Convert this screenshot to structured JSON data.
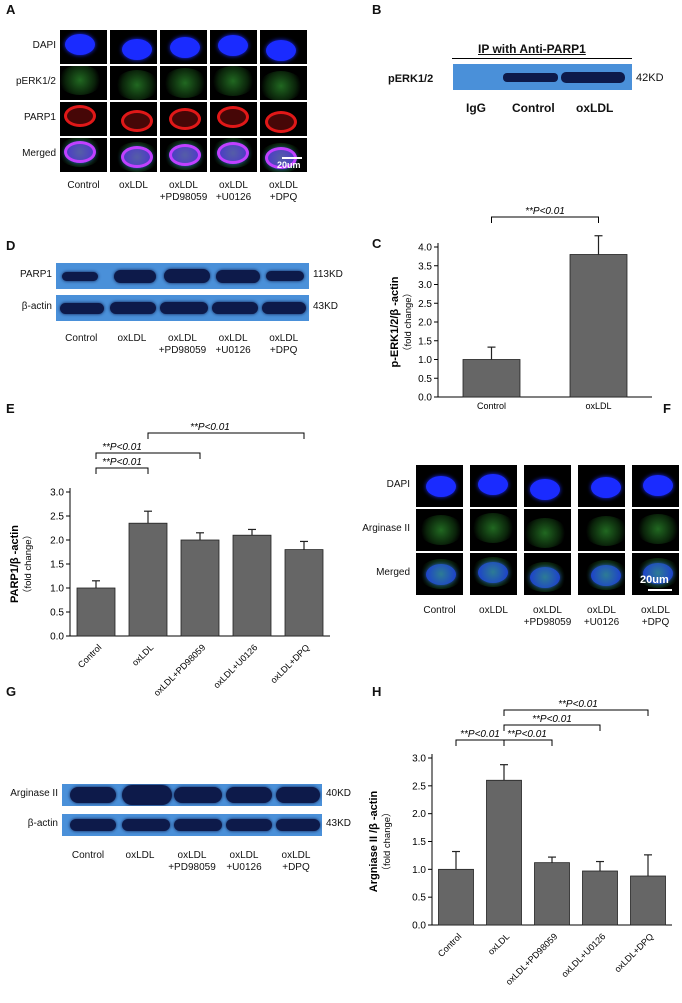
{
  "panels": {
    "A": {
      "letter": "A",
      "rows": [
        "DAPI",
        "pERK1/2",
        "PARP1",
        "Merged"
      ],
      "conditions": [
        "Control",
        "oxLDL",
        "oxLDL\n+PD98059",
        "oxLDL\n+U0126",
        "oxLDL\n+DPQ"
      ],
      "scale_label": "20um"
    },
    "B": {
      "letter": "B",
      "title": "IP with Anti-PARP1",
      "row_label": "pERK1/2",
      "size_label": "42KD",
      "lanes": [
        "IgG",
        "Control",
        "oxLDL"
      ]
    },
    "C": {
      "letter": "C",
      "significance": "**P<0.01"
    },
    "D": {
      "letter": "D",
      "rows": [
        {
          "name": "PARP1",
          "size": "113KD"
        },
        {
          "name": "β-actin",
          "size": "43KD"
        }
      ],
      "conditions": [
        "Control",
        "oxLDL",
        "oxLDL\n+PD98059",
        "oxLDL\n+U0126",
        "oxLDL\n+DPQ"
      ]
    },
    "E": {
      "letter": "E",
      "significance": [
        "**P<0.01",
        "**P<0.01",
        "**P<0.01"
      ]
    },
    "F": {
      "letter": "F",
      "rows": [
        "DAPI",
        "Arginase II",
        "Merged"
      ],
      "conditions": [
        "Control",
        "oxLDL",
        "oxLDL\n+PD98059",
        "oxLDL\n+U0126",
        "oxLDL\n+DPQ"
      ],
      "scale_label": "20um"
    },
    "G": {
      "letter": "G",
      "rows": [
        {
          "name": "Arginase II",
          "size": "40KD"
        },
        {
          "name": "β-actin",
          "size": "43KD"
        }
      ],
      "conditions": [
        "Control",
        "oxLDL",
        "oxLDL\n+PD98059",
        "oxLDL\n+U0126",
        "oxLDL\n+DPQ"
      ]
    },
    "H": {
      "letter": "H",
      "significance": [
        "**P<0.01",
        "**P<0.01",
        "**P<0.01",
        "**P<0.01"
      ]
    }
  },
  "colors": {
    "bar_fill": "#666666",
    "dapi": "#1a2bff",
    "green": "#3fbf3f",
    "red": "#e01818",
    "blot_bg": "#4a90d9",
    "band": "#0d1a4a"
  },
  "chart_data": [
    {
      "panel": "C",
      "type": "bar",
      "categories": [
        "Control",
        "oxLDL"
      ],
      "values": [
        1.0,
        3.8
      ],
      "errors": [
        0.33,
        0.5
      ],
      "ylabel": "p-ERK1/2/β -actin\n（fold change）",
      "ylim": [
        0,
        4.0
      ],
      "yticks": [
        0.0,
        0.5,
        1.0,
        1.5,
        2.0,
        2.5,
        3.0,
        3.5,
        4.0
      ],
      "yticklabels": [
        "0.0",
        "0.5",
        "1.0",
        "1.5",
        "2.0",
        "2.5",
        "3.0",
        "3.5",
        "4.0"
      ]
    },
    {
      "panel": "E",
      "type": "bar",
      "categories": [
        "Control",
        "oxLDL",
        "oxLDL+PD98059",
        "oxLDL+U0126",
        "oxLDL+DPQ"
      ],
      "values": [
        1.0,
        2.35,
        2.0,
        2.1,
        1.8
      ],
      "errors": [
        0.15,
        0.25,
        0.15,
        0.12,
        0.17
      ],
      "ylabel": "PARP1/β -actin\n（fold change）",
      "ylim": [
        0,
        3.0
      ],
      "yticks": [
        0.0,
        0.5,
        1.0,
        1.5,
        2.0,
        2.5,
        3.0
      ],
      "yticklabels": [
        "0.0",
        "0.5",
        "1.0",
        "1.5",
        "2.0",
        "2.5",
        "3.0"
      ]
    },
    {
      "panel": "H",
      "type": "bar",
      "categories": [
        "Control",
        "oxLDL",
        "oxLDL+PD98059",
        "oxLDL+U0126",
        "oxLDL+DPQ"
      ],
      "values": [
        1.0,
        2.6,
        1.12,
        0.97,
        0.88
      ],
      "errors": [
        0.32,
        0.28,
        0.1,
        0.17,
        0.38
      ],
      "ylabel": "Argniase II /β -actin\n（fold change）",
      "ylim": [
        0,
        3.0
      ],
      "yticks": [
        0.0,
        0.5,
        1.0,
        1.5,
        2.0,
        2.5,
        3.0
      ],
      "yticklabels": [
        "0.0",
        "0.5",
        "1.0",
        "1.5",
        "2.0",
        "2.5",
        "3.0"
      ]
    }
  ]
}
